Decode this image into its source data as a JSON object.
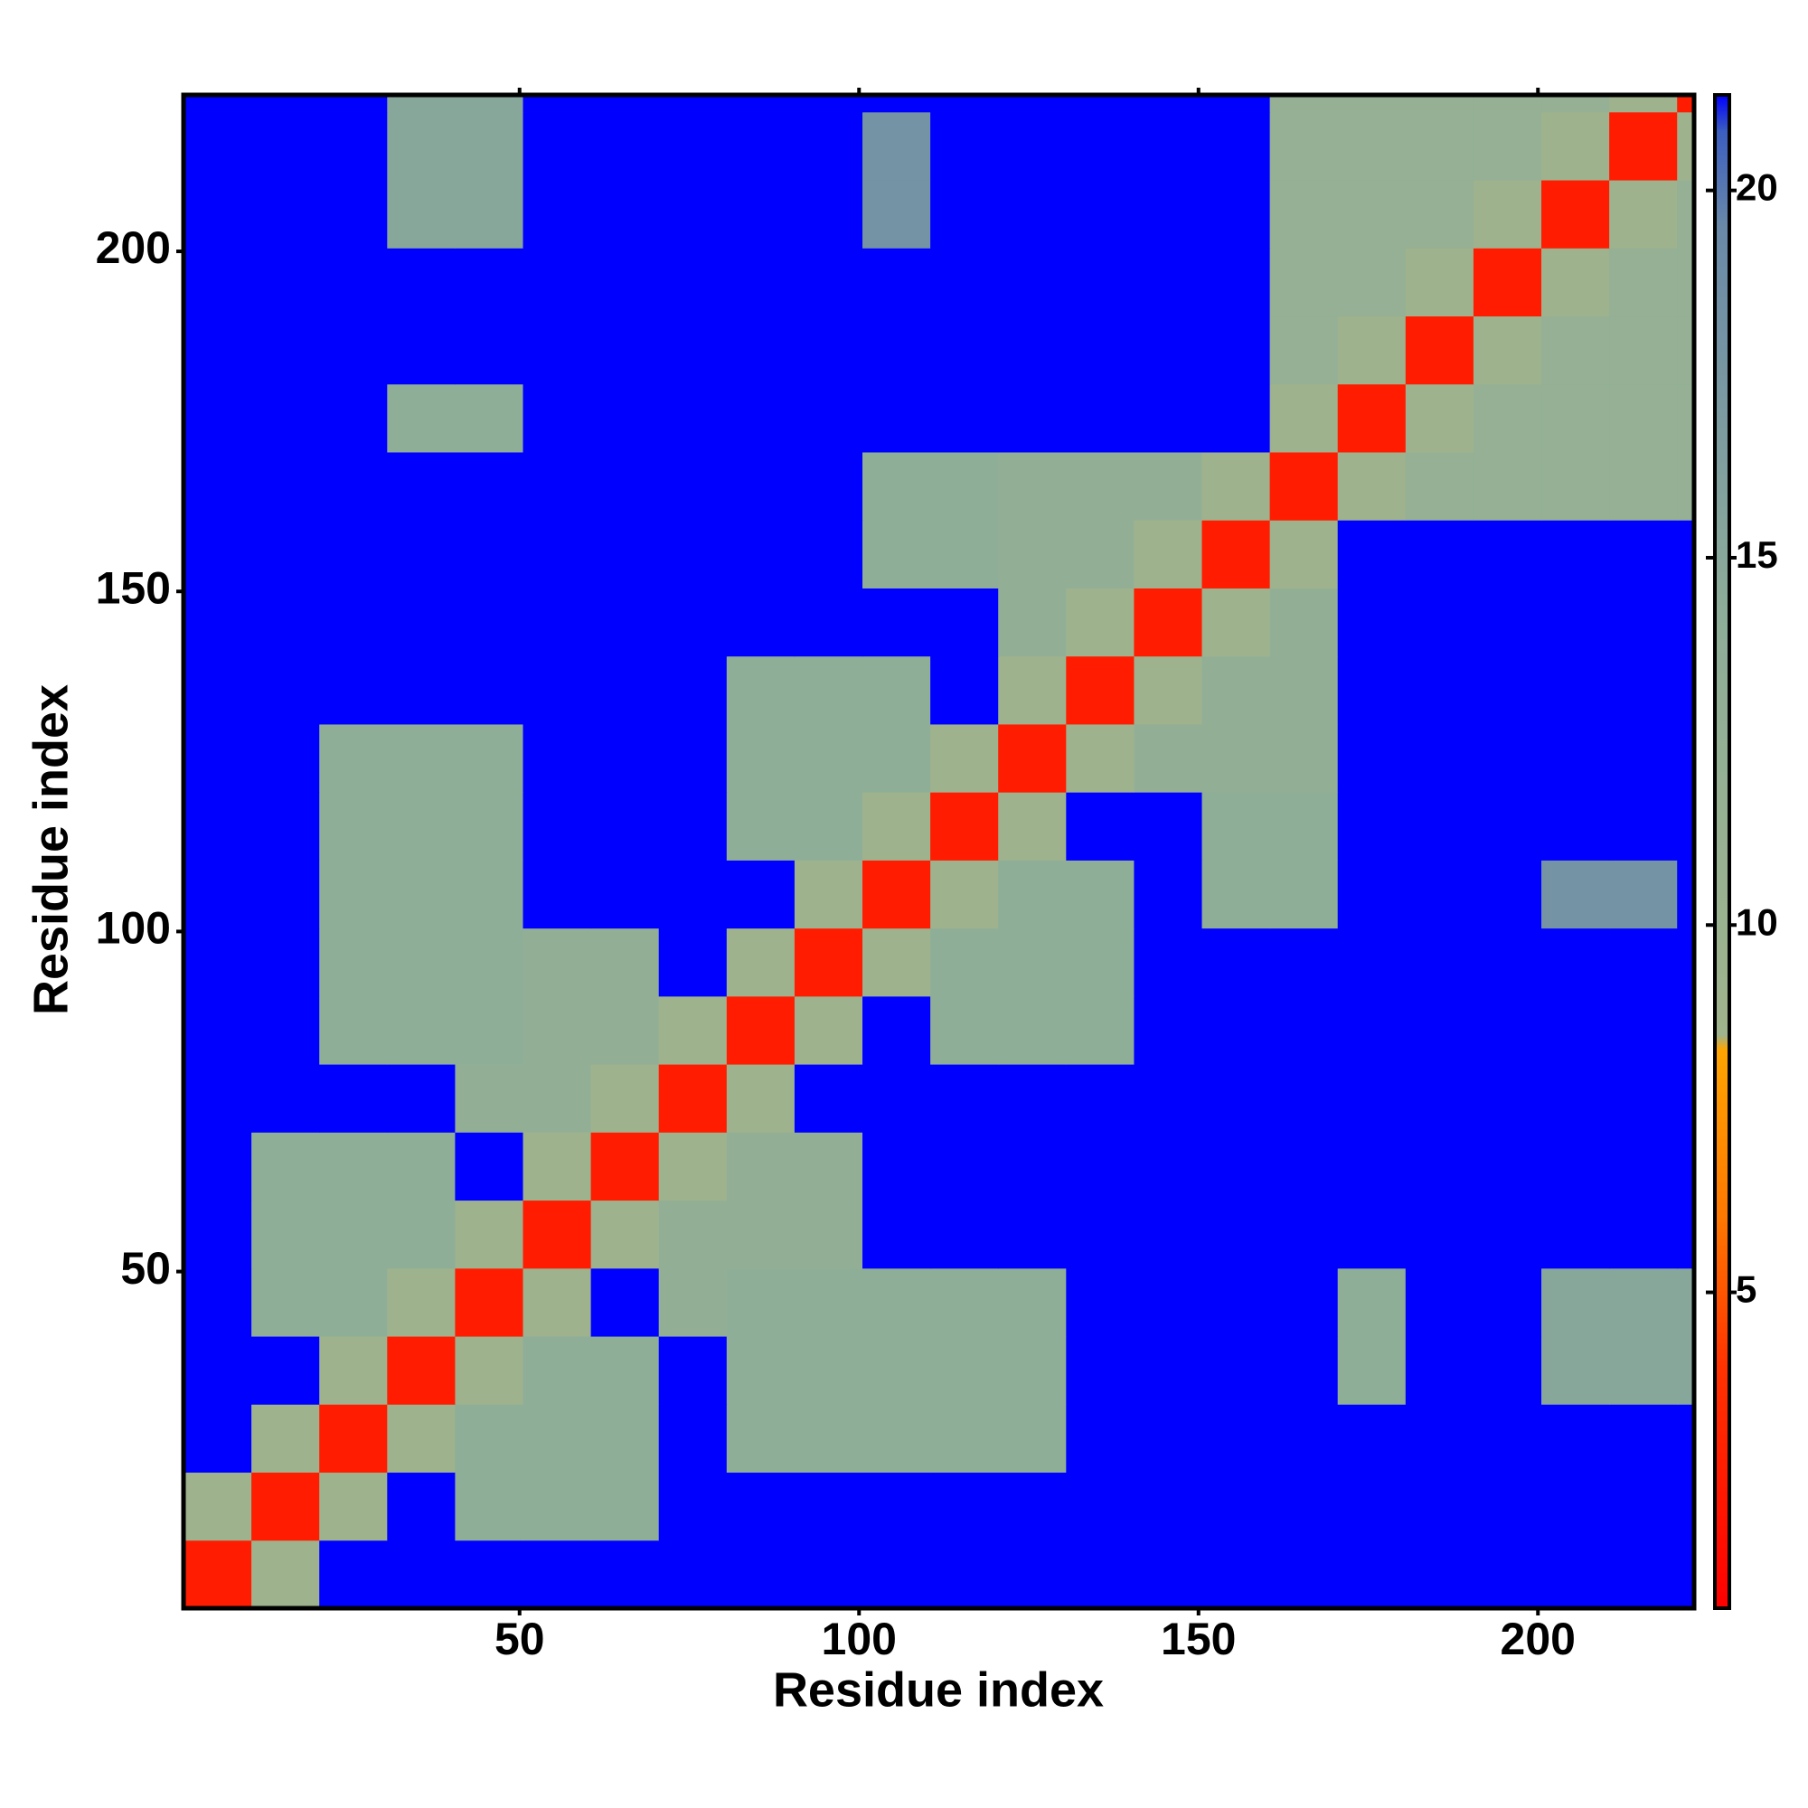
{
  "chart_data": {
    "type": "heatmap",
    "xlabel": "Residue index",
    "ylabel": "Residue index",
    "x_bins": [
      0.5,
      10.5,
      20.5,
      30.5,
      40.5,
      50.5,
      60.5,
      70.5,
      80.5,
      90.5,
      100.5,
      110.5,
      120.5,
      130.5,
      140.5,
      150.5,
      160.5,
      170.5,
      180.5,
      190.5,
      200.5,
      210.5,
      220.5,
      223
    ],
    "y_bins": [
      0.5,
      10.5,
      20.5,
      30.5,
      40.5,
      50.5,
      60.5,
      70.5,
      80.5,
      90.5,
      100.5,
      110.5,
      120.5,
      130.5,
      140.5,
      150.5,
      160.5,
      170.5,
      180.5,
      190.5,
      200.5,
      210.5,
      220.5,
      223
    ],
    "xlim": [
      0.5,
      223
    ],
    "ylim": [
      0.5,
      223
    ],
    "xticks": [
      50,
      100,
      150,
      200
    ],
    "yticks": [
      50,
      100,
      150,
      200
    ],
    "clim": [
      0.7,
      21.3
    ],
    "colorbar_ticks": [
      5,
      10,
      15,
      20
    ],
    "colorscale": [
      [
        0.7,
        "#ff0000"
      ],
      [
        4,
        "#ff3300"
      ],
      [
        6,
        "#ff7700"
      ],
      [
        8.3,
        "#ffa500"
      ],
      [
        8.5,
        "#9fb38c"
      ],
      [
        14,
        "#8fae98"
      ],
      [
        19.5,
        "#6a89a8"
      ],
      [
        20.8,
        "#3c5ec0"
      ],
      [
        21.3,
        "#0000ff"
      ]
    ],
    "z": [
      [
        2.5,
        9,
        21.3,
        21.3,
        21.3,
        21.3,
        21.3,
        21.3,
        21.3,
        21.3,
        21.3,
        21.3,
        21.3,
        21.3,
        21.3,
        21.3,
        21.3,
        21.3,
        21.3,
        21.3,
        21.3,
        21.3,
        21.3
      ],
      [
        9,
        2.5,
        9,
        21.3,
        14,
        14,
        14,
        21.3,
        21.3,
        21.3,
        21.3,
        21.3,
        21.3,
        21.3,
        21.3,
        21.3,
        21.3,
        21.3,
        21.3,
        21.3,
        21.3,
        21.3,
        21.3
      ],
      [
        21.3,
        9,
        2.5,
        9,
        14,
        14,
        14,
        21.3,
        14,
        14,
        14,
        14,
        14,
        21.3,
        21.3,
        21.3,
        21.3,
        21.3,
        21.3,
        21.3,
        21.3,
        21.3,
        21.3
      ],
      [
        21.3,
        21.3,
        9,
        2.5,
        9,
        14,
        14,
        21.3,
        14,
        14,
        14,
        14,
        14,
        21.3,
        21.3,
        21.3,
        21.3,
        14,
        21.3,
        21.3,
        15,
        15,
        15
      ],
      [
        21.3,
        14,
        14,
        9,
        2.5,
        9,
        21.3,
        13,
        14,
        14,
        14,
        14,
        14,
        21.3,
        21.3,
        21.3,
        21.3,
        14,
        21.3,
        21.3,
        15,
        15,
        15
      ],
      [
        21.3,
        14,
        14,
        14,
        9,
        2.5,
        9,
        13,
        13,
        13,
        21.3,
        21.3,
        21.3,
        21.3,
        21.3,
        21.3,
        21.3,
        21.3,
        21.3,
        21.3,
        21.3,
        21.3,
        21.3
      ],
      [
        21.3,
        14,
        14,
        14,
        21.3,
        9,
        2.5,
        9,
        13,
        13,
        21.3,
        21.3,
        21.3,
        21.3,
        21.3,
        21.3,
        21.3,
        21.3,
        21.3,
        21.3,
        21.3,
        21.3,
        21.3
      ],
      [
        21.3,
        21.3,
        21.3,
        21.3,
        13,
        13,
        9,
        2.5,
        9,
        21.3,
        21.3,
        21.3,
        21.3,
        21.3,
        21.3,
        21.3,
        21.3,
        21.3,
        21.3,
        21.3,
        21.3,
        21.3,
        21.3
      ],
      [
        21.3,
        21.3,
        14,
        14,
        14,
        13,
        13,
        9,
        2.5,
        9,
        21.3,
        14,
        14,
        14,
        21.3,
        21.3,
        21.3,
        21.3,
        21.3,
        21.3,
        21.3,
        21.3,
        21.3
      ],
      [
        21.3,
        21.3,
        14,
        14,
        14,
        13,
        13,
        21.3,
        9,
        2.5,
        9,
        14,
        14,
        14,
        21.3,
        21.3,
        21.3,
        21.3,
        21.3,
        21.3,
        21.3,
        21.3,
        21.3
      ],
      [
        21.3,
        21.3,
        14,
        14,
        14,
        21.3,
        21.3,
        21.3,
        21.3,
        9,
        2.5,
        9,
        14,
        14,
        21.3,
        14,
        14,
        21.3,
        21.3,
        21.3,
        18,
        18,
        21.3
      ],
      [
        21.3,
        21.3,
        14,
        14,
        14,
        21.3,
        21.3,
        21.3,
        14,
        14,
        9,
        2.5,
        9,
        21.3,
        21.3,
        14,
        14,
        21.3,
        21.3,
        21.3,
        21.3,
        21.3,
        21.3
      ],
      [
        21.3,
        21.3,
        14,
        14,
        14,
        21.3,
        21.3,
        21.3,
        14,
        14,
        14,
        9,
        2.5,
        9,
        13,
        13,
        13,
        21.3,
        21.3,
        21.3,
        21.3,
        21.3,
        21.3
      ],
      [
        21.3,
        21.3,
        21.3,
        21.3,
        21.3,
        21.3,
        21.3,
        21.3,
        14,
        14,
        14,
        21.3,
        9,
        2.5,
        9,
        13,
        13,
        21.3,
        21.3,
        21.3,
        21.3,
        21.3,
        21.3
      ],
      [
        21.3,
        21.3,
        21.3,
        21.3,
        21.3,
        21.3,
        21.3,
        21.3,
        21.3,
        21.3,
        21.3,
        21.3,
        13,
        9,
        2.5,
        9,
        13,
        21.3,
        21.3,
        21.3,
        21.3,
        21.3,
        21.3
      ],
      [
        21.3,
        21.3,
        21.3,
        21.3,
        21.3,
        21.3,
        21.3,
        21.3,
        21.3,
        21.3,
        14,
        14,
        13,
        13,
        9,
        2.5,
        9,
        21.3,
        21.3,
        21.3,
        21.3,
        21.3,
        21.3
      ],
      [
        21.3,
        21.3,
        21.3,
        21.3,
        21.3,
        21.3,
        21.3,
        21.3,
        21.3,
        21.3,
        14,
        14,
        13,
        13,
        13,
        9,
        2.5,
        9,
        12,
        12,
        12,
        12,
        12
      ],
      [
        21.3,
        21.3,
        21.3,
        14,
        14,
        21.3,
        21.3,
        21.3,
        21.3,
        21.3,
        21.3,
        21.3,
        21.3,
        21.3,
        21.3,
        21.3,
        9,
        2.5,
        9,
        12,
        12,
        12,
        12
      ],
      [
        21.3,
        21.3,
        21.3,
        21.3,
        21.3,
        21.3,
        21.3,
        21.3,
        21.3,
        21.3,
        21.3,
        21.3,
        21.3,
        21.3,
        21.3,
        21.3,
        12,
        9,
        2.5,
        9,
        12,
        12,
        12
      ],
      [
        21.3,
        21.3,
        21.3,
        21.3,
        21.3,
        21.3,
        21.3,
        21.3,
        21.3,
        21.3,
        21.3,
        21.3,
        21.3,
        21.3,
        21.3,
        21.3,
        12,
        12,
        9,
        2.5,
        9,
        12,
        12
      ],
      [
        21.3,
        21.3,
        21.3,
        15,
        15,
        21.3,
        21.3,
        21.3,
        21.3,
        21.3,
        18,
        21.3,
        21.3,
        21.3,
        21.3,
        21.3,
        12,
        12,
        12,
        9,
        2.5,
        9,
        12
      ],
      [
        21.3,
        21.3,
        21.3,
        15,
        15,
        21.3,
        21.3,
        21.3,
        21.3,
        21.3,
        18,
        21.3,
        21.3,
        21.3,
        21.3,
        21.3,
        12,
        12,
        12,
        12,
        9,
        2.5,
        9
      ],
      [
        21.3,
        21.3,
        21.3,
        15,
        15,
        21.3,
        21.3,
        21.3,
        21.3,
        21.3,
        21.3,
        21.3,
        21.3,
        21.3,
        21.3,
        21.3,
        12,
        12,
        12,
        12,
        12,
        9,
        2.5
      ]
    ]
  }
}
